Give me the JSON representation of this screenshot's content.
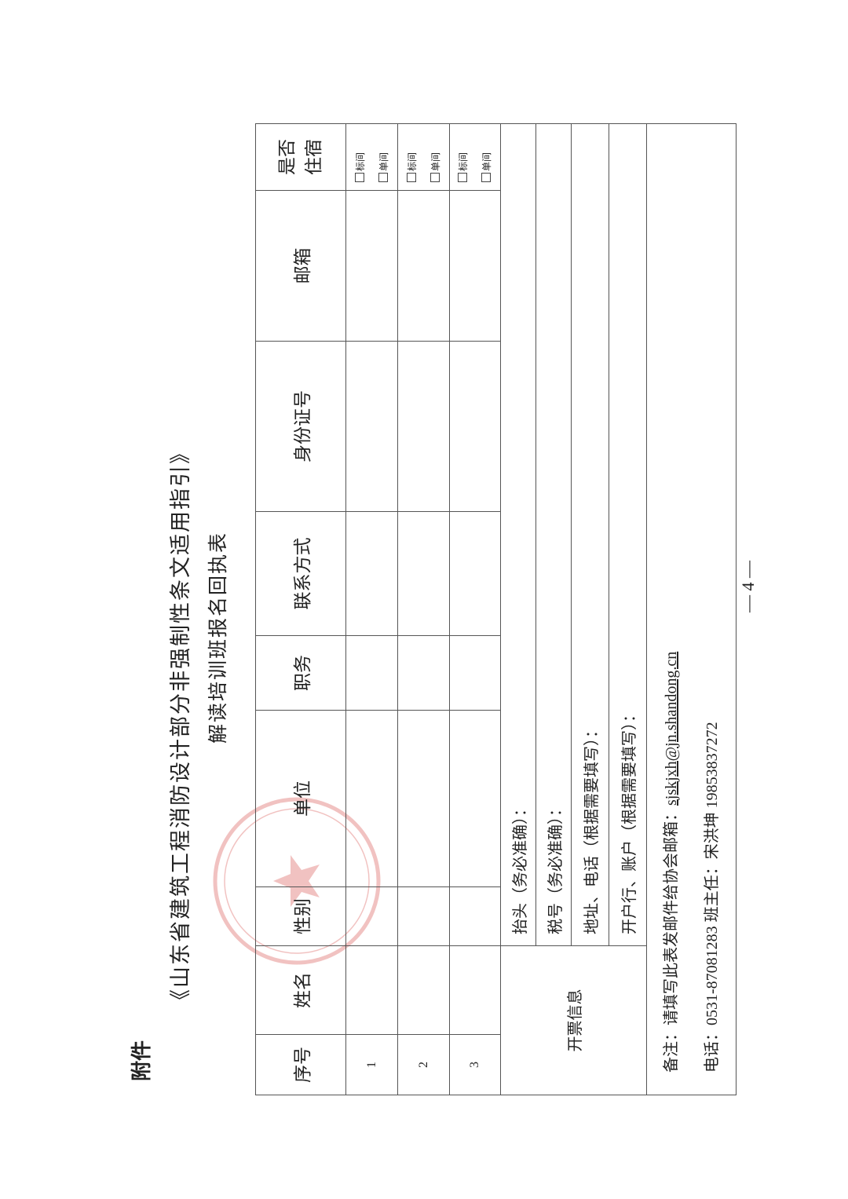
{
  "attachment_label": "附件",
  "title": "《山东省建筑工程消防设计部分非强制性条文适用指引》",
  "subtitle": "解读培训班报名回执表",
  "table": {
    "headers": [
      "序号",
      "姓名",
      "性别",
      "单位",
      "职务",
      "联系方式",
      "身份证号",
      "邮箱",
      "是否住宿"
    ],
    "header_accommodation_line1": "是否",
    "header_accommodation_line2": "住宿",
    "rows": [
      {
        "index": "1",
        "options": [
          "标间",
          "单间"
        ]
      },
      {
        "index": "2",
        "options": [
          "标间",
          "单间"
        ]
      },
      {
        "index": "3",
        "options": [
          "标间",
          "单间"
        ]
      }
    ],
    "invoice": {
      "label": "开票信息",
      "fields": [
        "抬头（务必准确）：",
        "税号（务必准确）：",
        "地址、电话（根据需要填写）：",
        "开户行、账户（根据需要填写）："
      ]
    },
    "notes": {
      "remark_prefix": "备注：请填写此表发邮件给协会邮箱：",
      "email": "sjskjxh@jn.shandong.cn",
      "phone_line": "电话：0531-87081283 班主任：宋洪坤 19853837272"
    }
  },
  "page_number": "— 4 —",
  "seal_color": "#d9534f"
}
